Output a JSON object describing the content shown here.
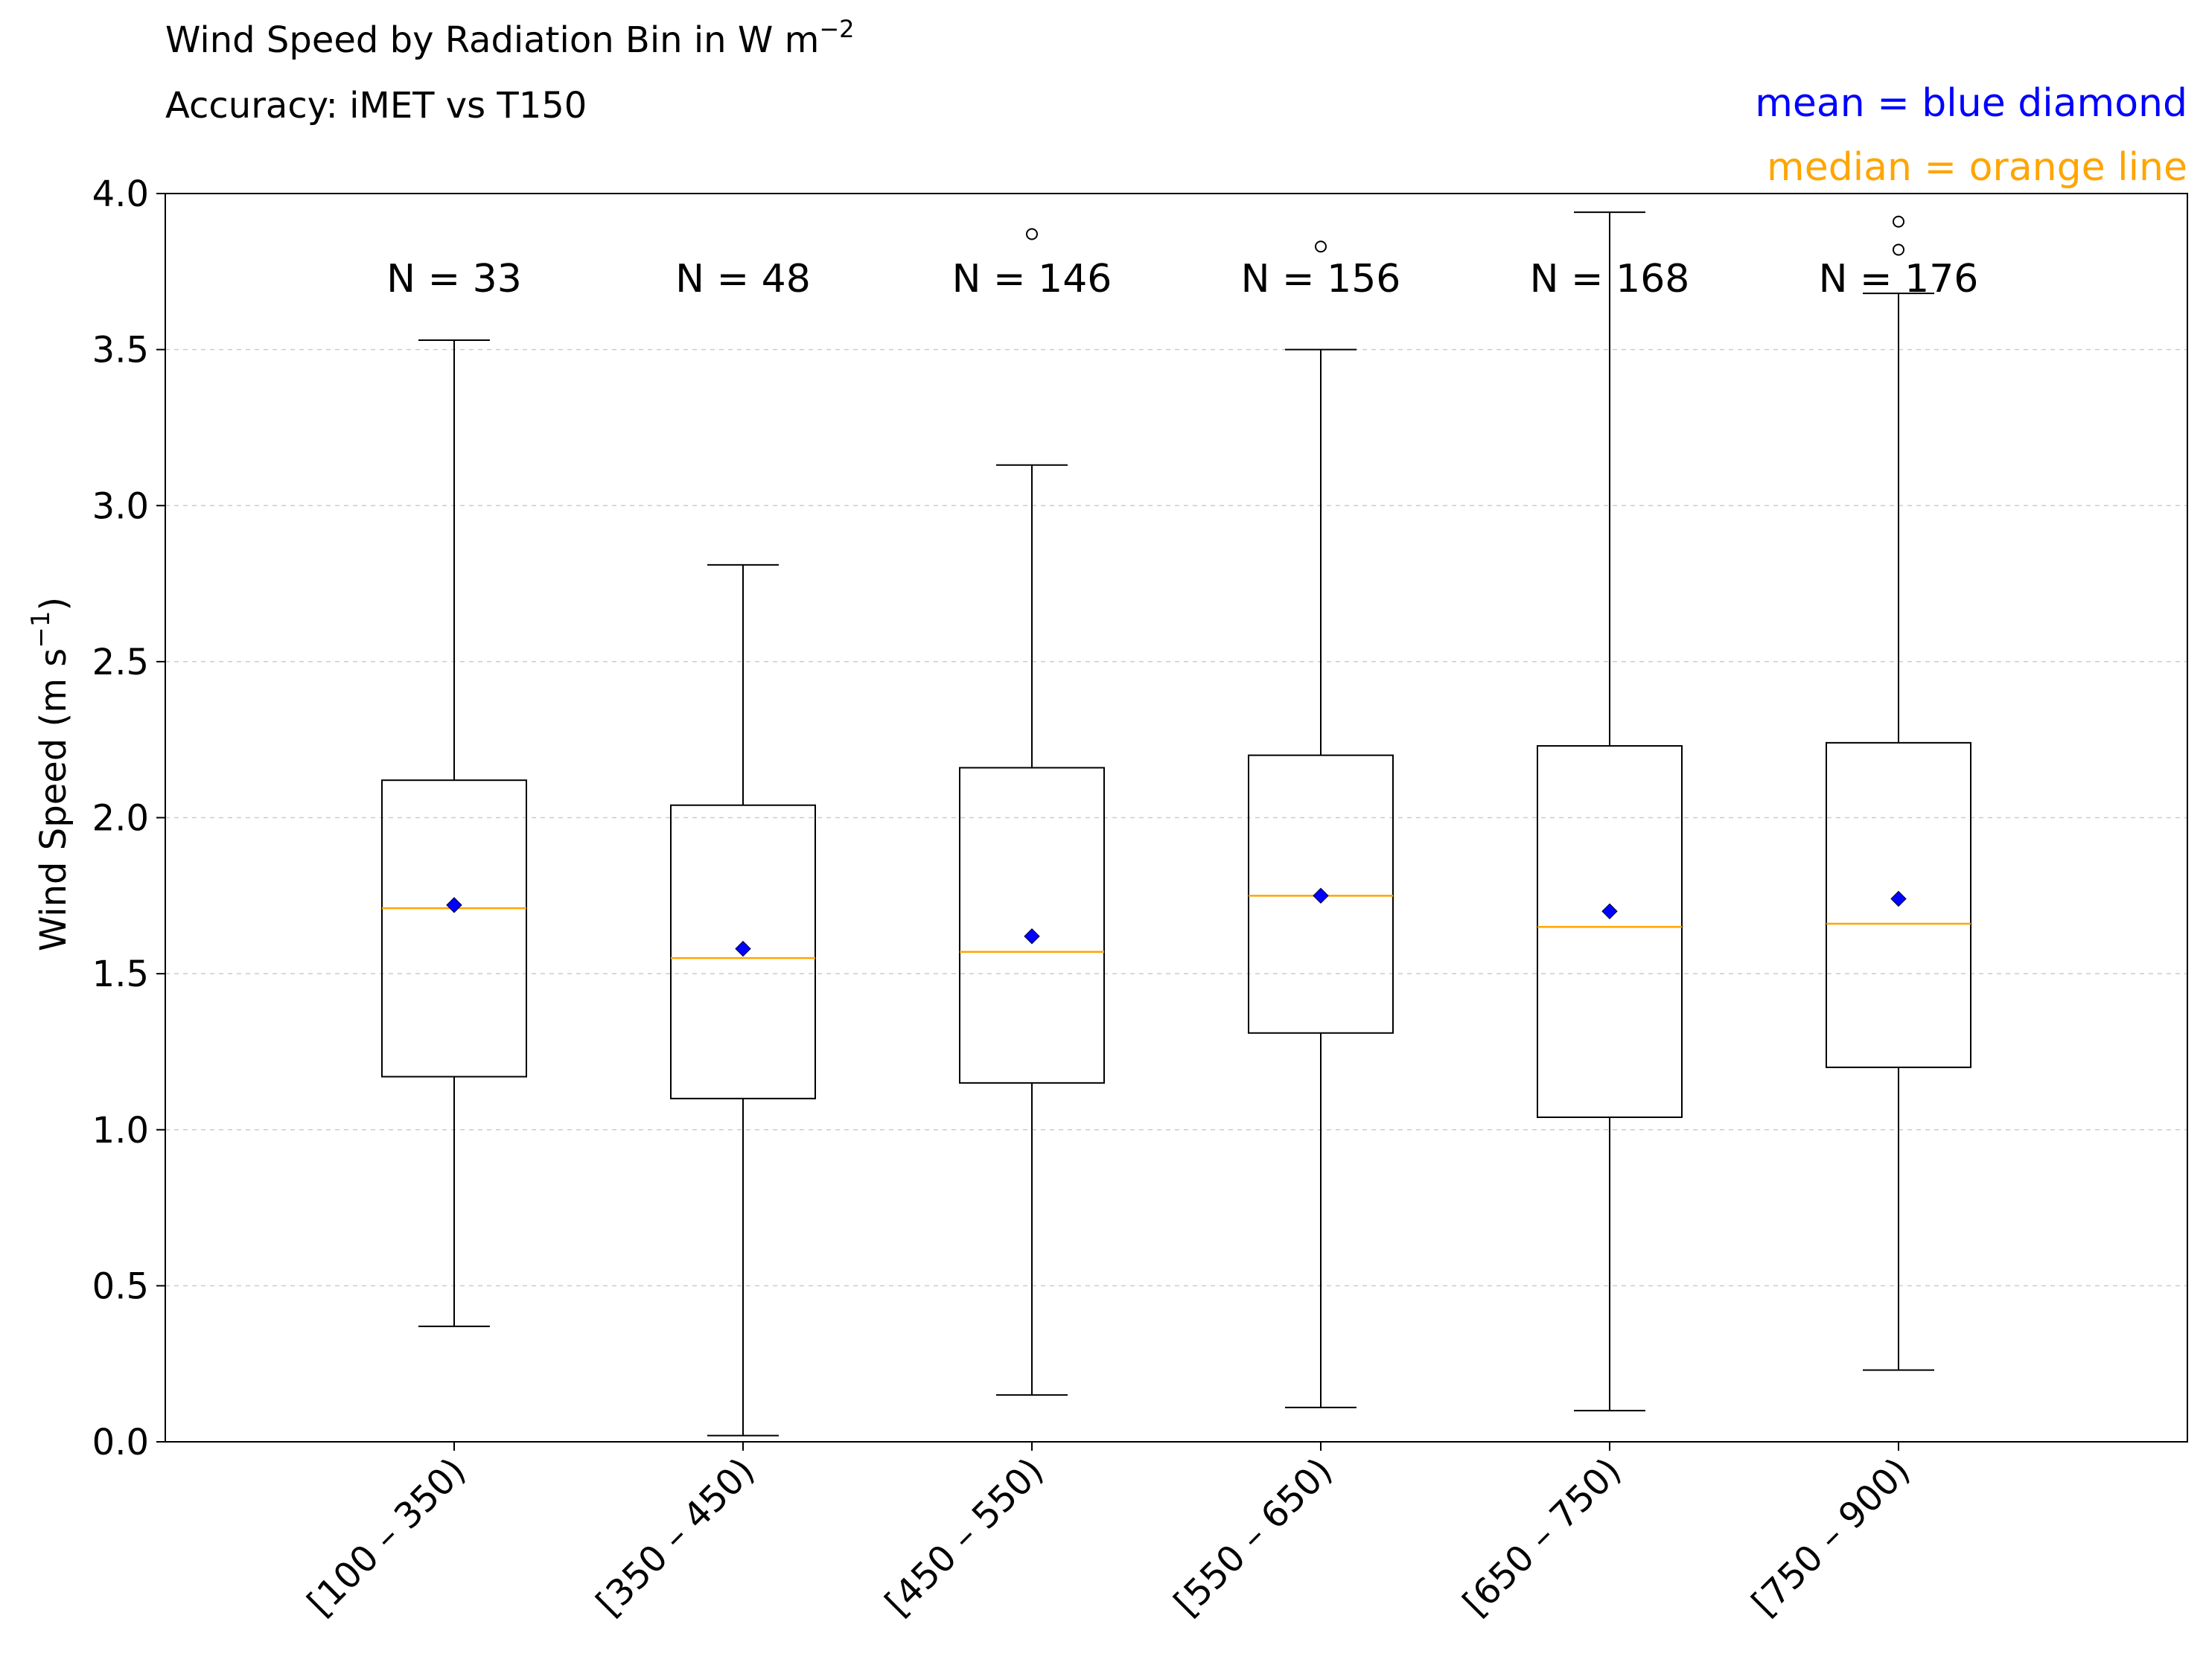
{
  "chart_data": {
    "type": "boxplot",
    "title": "Wind Speed by Radiation Bin in W m",
    "title_sup": "−2",
    "subtitle": "Accuracy:  iMET vs T150",
    "ylabel": "Wind Speed (m s",
    "ylabel_sup": "−1",
    "ylabel_end": ")",
    "xlabel": "",
    "ylim": [
      0.0,
      4.0
    ],
    "yticks": [
      "0.0",
      "0.5",
      "1.0",
      "1.5",
      "2.0",
      "2.5",
      "3.0",
      "3.5",
      "4.0"
    ],
    "grid": "horizontal dashed",
    "legend": {
      "placement": "top-right",
      "mean_label": "mean = blue diamond",
      "median_label": "median = orange line"
    },
    "colors": {
      "mean": "#0000ff",
      "median": "#ffa500",
      "box": "#000000",
      "whisker": "#000000",
      "grid": "#cccccc"
    },
    "categories": [
      "[100 – 350)",
      "[350 – 450)",
      "[450 – 550)",
      "[550 – 650)",
      "[650 – 750)",
      "[750 – 900)"
    ],
    "counts": [
      "N = 33",
      "N = 48",
      "N = 146",
      "N = 156",
      "N = 168",
      "N = 176"
    ],
    "boxes": [
      {
        "whislo": 0.37,
        "q1": 1.17,
        "median": 1.71,
        "q3": 2.12,
        "whishi": 3.53,
        "mean": 1.72,
        "fliers": []
      },
      {
        "whislo": 0.02,
        "q1": 1.1,
        "median": 1.55,
        "q3": 2.04,
        "whishi": 2.81,
        "mean": 1.58,
        "fliers": []
      },
      {
        "whislo": 0.15,
        "q1": 1.15,
        "median": 1.57,
        "q3": 2.16,
        "whishi": 3.13,
        "mean": 1.62,
        "fliers": [
          3.87
        ]
      },
      {
        "whislo": 0.11,
        "q1": 1.31,
        "median": 1.75,
        "q3": 2.2,
        "whishi": 3.5,
        "mean": 1.75,
        "fliers": [
          3.83
        ]
      },
      {
        "whislo": 0.1,
        "q1": 1.04,
        "median": 1.65,
        "q3": 2.23,
        "whishi": 3.94,
        "mean": 1.7,
        "fliers": []
      },
      {
        "whislo": 0.23,
        "q1": 1.2,
        "median": 1.66,
        "q3": 2.24,
        "whishi": 3.68,
        "mean": 1.74,
        "fliers": [
          3.82,
          3.91
        ]
      }
    ]
  }
}
